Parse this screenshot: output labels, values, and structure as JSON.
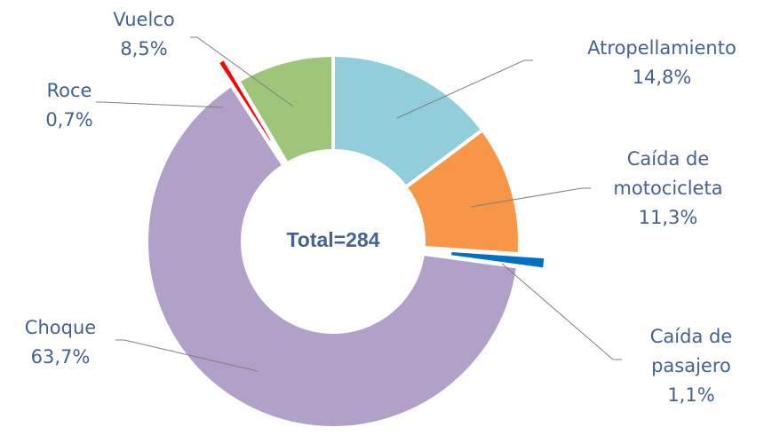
{
  "chart_data": {
    "type": "donut",
    "center_text": "Total=284",
    "categories": [
      "Atropellamiento",
      "Caída de motocicleta",
      "Caída de pasajero",
      "Choque",
      "Roce",
      "Vuelco"
    ],
    "values": [
      14.8,
      11.3,
      1.1,
      63.7,
      0.7,
      8.5
    ],
    "value_labels": [
      "14,8%",
      "11,3%",
      "1,1%",
      "63,7%",
      "0,7%",
      "8,5%"
    ],
    "colors": [
      "#92cddc",
      "#f79646",
      "#0070c0",
      "#b1a0c7",
      "#ff0000",
      "#9dc67a"
    ]
  }
}
